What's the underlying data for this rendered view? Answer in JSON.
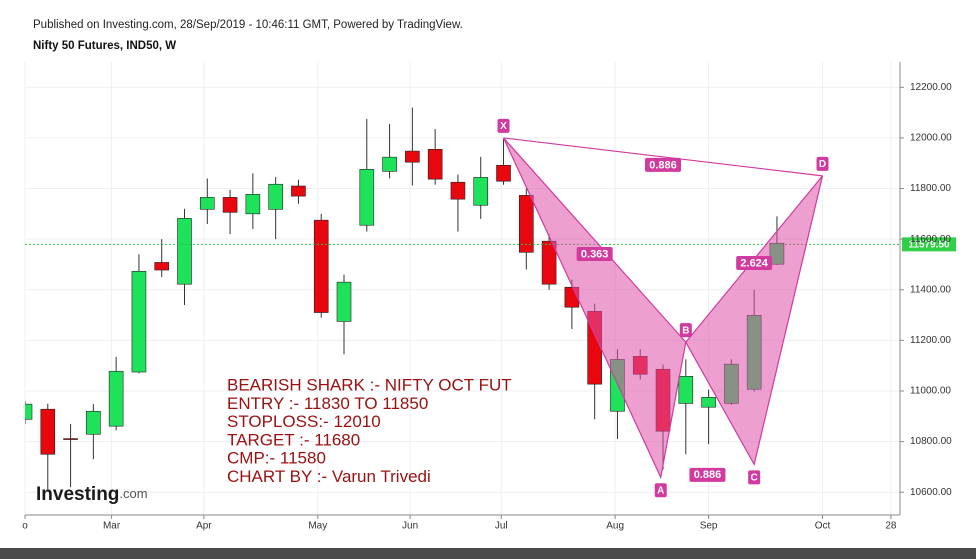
{
  "chart_data": {
    "type": "candlestick",
    "header": "Published on Investing.com, 28/Sep/2019 - 10:46:11 GMT, Powered by TradingView.",
    "title": "Nifty 50 Futures, IND50, W",
    "x": [
      0,
      1,
      2,
      3,
      4,
      5,
      6,
      7,
      8,
      9,
      10,
      11,
      12,
      13,
      14,
      15,
      16,
      17,
      18,
      19,
      20,
      21,
      22,
      23,
      24,
      25,
      26,
      27,
      28,
      29,
      30,
      31,
      32,
      33
    ],
    "open": [
      10888,
      10928,
      10812,
      10829,
      10861,
      11075,
      11508,
      11422,
      11718,
      11765,
      11700,
      11718,
      11810,
      11675,
      11275,
      11655,
      11868,
      11948,
      11955,
      11825,
      11734,
      11892,
      11773,
      11592,
      11410,
      11315,
      10920,
      11137,
      11086,
      10951,
      10936,
      10951,
      11007,
      11501
    ],
    "high": [
      10960,
      10950,
      10870,
      10948,
      11135,
      11540,
      11600,
      11720,
      11840,
      11795,
      11860,
      11845,
      11835,
      11700,
      11460,
      12075,
      12055,
      12120,
      12035,
      11855,
      11925,
      11995,
      11800,
      11620,
      11440,
      11345,
      11165,
      11165,
      11105,
      11125,
      11005,
      11125,
      11400,
      11690
    ],
    "low": [
      10870,
      10610,
      10620,
      10730,
      10845,
      11070,
      11450,
      11340,
      11660,
      11620,
      11640,
      11600,
      11740,
      11290,
      11145,
      11630,
      11840,
      11812,
      11815,
      11630,
      11680,
      11815,
      11480,
      11400,
      11245,
      10888,
      10810,
      11045,
      10690,
      10750,
      10790,
      10945,
      10998,
      11498
    ],
    "close": [
      10948,
      10750,
      10808,
      10920,
      11078,
      11473,
      11478,
      11682,
      11765,
      11706,
      11777,
      11817,
      11770,
      11310,
      11430,
      11876,
      11924,
      11904,
      11837,
      11758,
      11844,
      11829,
      11548,
      11422,
      11331,
      11027,
      11125,
      11066,
      10841,
      11058,
      10975,
      11106,
      11299,
      11584
    ],
    "up_color": "#1ee35a",
    "down_color": "#e8070e",
    "xlim": [
      0,
      38.4
    ],
    "xticks": [
      {
        "value": 0,
        "label": "o"
      },
      {
        "value": 3.8,
        "label": "Mar"
      },
      {
        "value": 7.85,
        "label": "Apr"
      },
      {
        "value": 12.85,
        "label": "May"
      },
      {
        "value": 16.9,
        "label": "Jun"
      },
      {
        "value": 20.9,
        "label": "Jul"
      },
      {
        "value": 25.9,
        "label": "Aug"
      },
      {
        "value": 30,
        "label": "Sep"
      },
      {
        "value": 35,
        "label": "Oct"
      },
      {
        "value": 38,
        "label": "28"
      }
    ],
    "ylim": [
      10510,
      12300
    ],
    "yticks": [
      {
        "value": 10600,
        "label": "10600.00"
      },
      {
        "value": 10800,
        "label": "10800.00"
      },
      {
        "value": 11000,
        "label": "11000.00"
      },
      {
        "value": 11200,
        "label": "11200.00"
      },
      {
        "value": 11400,
        "label": "11400.00"
      },
      {
        "value": 11600,
        "label": "11600.00"
      },
      {
        "value": 11800,
        "label": "11800.00"
      },
      {
        "value": 12000,
        "label": "12000.00"
      },
      {
        "value": 12200,
        "label": "12200.00"
      }
    ],
    "grid": true,
    "last_price": {
      "value": 11579.5,
      "label": "11579.50"
    },
    "pattern": {
      "color": "#d13a9e",
      "points": [
        {
          "label": "X",
          "x": 21,
          "y": 12000
        },
        {
          "label": "A",
          "x": 27.9,
          "y": 10659
        },
        {
          "label": "B",
          "x": 29,
          "y": 11193
        },
        {
          "label": "C",
          "x": 32,
          "y": 10710
        },
        {
          "label": "D",
          "x": 35,
          "y": 11850
        }
      ],
      "ratios": [
        0.886,
        0.363,
        0.886,
        2.624
      ]
    },
    "annotation": [
      "BEARISH SHARK :- NIFTY OCT FUT",
      "ENTRY :- 11830 TO 11850",
      "STOPLOSS:- 12010",
      "TARGET :- 11680",
      "CMP:- 11580",
      "CHART BY :- Varun Trivedi"
    ],
    "logo": {
      "name": "Investing",
      "suffix": ".com"
    }
  }
}
